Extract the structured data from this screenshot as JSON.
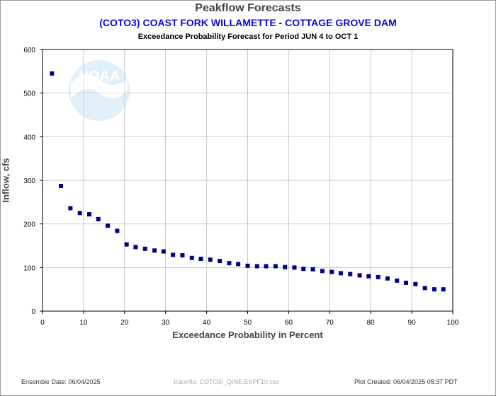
{
  "chart_data": {
    "type": "scatter",
    "title": "Peakflow Forecasts",
    "subtitle": "(COTO3) COAST FORK WILLAMETTE - COTTAGE GROVE DAM",
    "caption": "Exceedance Probability Forecast for Period JUN 4 to OCT 1",
    "xlabel": "Exceedance Probability in Percent",
    "ylabel": "Inflow, cfs",
    "xlim": [
      0,
      100
    ],
    "ylim": [
      0,
      600
    ],
    "xticks": [
      0,
      10,
      20,
      30,
      40,
      50,
      60,
      70,
      80,
      90,
      100
    ],
    "yticks": [
      0,
      100,
      200,
      300,
      400,
      500,
      600
    ],
    "grid": true,
    "marker_color": "#00008b",
    "series": [
      {
        "x": [
          2.3,
          4.5,
          6.8,
          9.1,
          11.4,
          13.6,
          15.9,
          18.2,
          20.5,
          22.7,
          25.0,
          27.3,
          29.5,
          31.8,
          34.1,
          36.4,
          38.6,
          40.9,
          43.2,
          45.5,
          47.7,
          50.0,
          52.3,
          54.5,
          56.8,
          59.1,
          61.4,
          63.6,
          65.9,
          68.2,
          70.5,
          72.7,
          75.0,
          77.3,
          79.5,
          81.8,
          84.1,
          86.4,
          88.6,
          90.9,
          93.2,
          95.5,
          97.7
        ],
        "y": [
          545,
          287,
          236,
          225,
          222,
          211,
          196,
          184,
          153,
          147,
          143,
          139,
          137,
          129,
          128,
          122,
          120,
          118,
          115,
          110,
          108,
          104,
          103,
          103,
          103,
          101,
          100,
          97,
          96,
          92,
          90,
          87,
          85,
          82,
          80,
          78,
          75,
          70,
          65,
          62,
          53,
          50,
          50
        ]
      }
    ]
  },
  "footer": {
    "ensemble": "Ensemble Date: 06/04/2025",
    "tracefile": "tracefile: COTO3I_QINE.ESPF10.csv",
    "created": "Plot Created: 06/04/2025 05:37 PDT"
  },
  "logo": {
    "text": "NOAA"
  }
}
